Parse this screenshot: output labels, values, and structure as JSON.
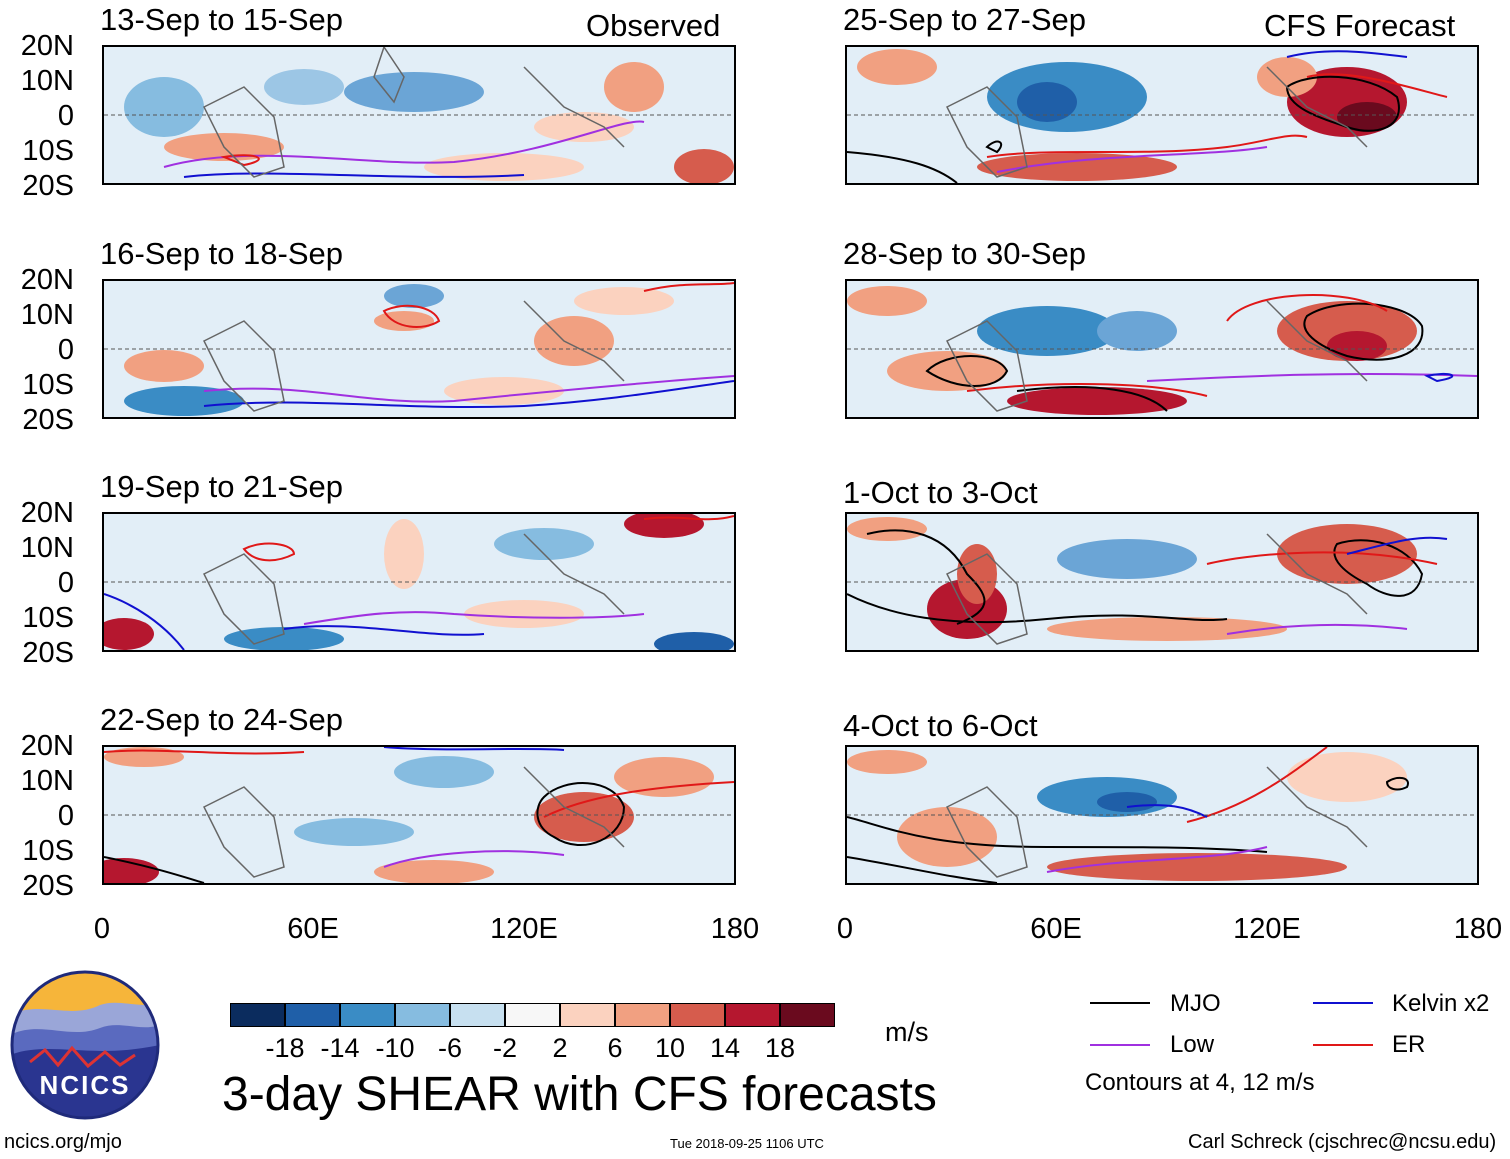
{
  "header": {
    "left_note": "Observed",
    "right_note": "CFS Forecast"
  },
  "panels": [
    {
      "period": "13-Sep to 15-Sep"
    },
    {
      "period": "16-Sep to 18-Sep"
    },
    {
      "period": "19-Sep to 21-Sep"
    },
    {
      "period": "22-Sep to 24-Sep"
    },
    {
      "period": "25-Sep to 27-Sep"
    },
    {
      "period": "28-Sep to 30-Sep"
    },
    {
      "period": "1-Oct to 3-Oct"
    },
    {
      "period": "4-Oct to 6-Oct"
    }
  ],
  "lat_labels": [
    "20N",
    "10N",
    "0",
    "10S",
    "20S"
  ],
  "lon_labels": [
    "0",
    "60E",
    "120E",
    "180"
  ],
  "colorbar": {
    "ticks": [
      "-18",
      "-14",
      "-10",
      "-6",
      "-2",
      "2",
      "6",
      "10",
      "14",
      "18"
    ],
    "colors": [
      "#0b2c5e",
      "#1f5fa8",
      "#3a8cc5",
      "#86bce0",
      "#c7e0f0",
      "#f7f7f7",
      "#fbd2bf",
      "#f1a081",
      "#d65c4d",
      "#b5172f",
      "#6a0a1e"
    ],
    "unit": "m/s"
  },
  "legend": {
    "items": [
      {
        "label": "MJO",
        "color": "#000000"
      },
      {
        "label": "Kelvin x2",
        "color": "#1010d0"
      },
      {
        "label": "Low",
        "color": "#a030e0"
      },
      {
        "label": "ER",
        "color": "#e01818"
      }
    ],
    "contours_note": "Contours at 4, 12 m/s"
  },
  "logo": {
    "text": "NCICS"
  },
  "footer": {
    "title": "3-day SHEAR with CFS forecasts",
    "url": "ncics.org/mjo",
    "timestamp": "Tue 2018-09-25 1106 UTC",
    "credit": "Carl Schreck (cjschrec@ncsu.edu)"
  }
}
